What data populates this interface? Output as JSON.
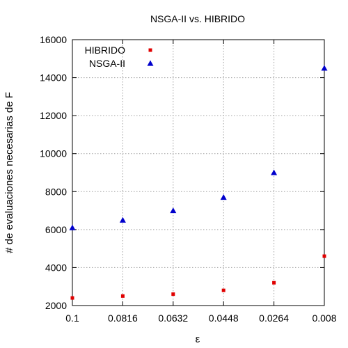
{
  "chart_data": {
    "type": "scatter",
    "title": "NSGA-II vs. HIBRIDO",
    "xlabel": "ε",
    "ylabel": "# de evaluaciones necesarias de F",
    "x_ticks": [
      "0.1",
      "0.0816",
      "0.0632",
      "0.0448",
      "0.0264",
      "0.008"
    ],
    "x": [
      0.1,
      0.0816,
      0.0632,
      0.0448,
      0.0264,
      0.008
    ],
    "xlim": [
      0.1,
      0.008
    ],
    "x_reversed": true,
    "ylim": [
      2000,
      16000
    ],
    "y_ticks": [
      2000,
      4000,
      6000,
      8000,
      10000,
      12000,
      14000,
      16000
    ],
    "grid": true,
    "legend_position": "top-left",
    "series": [
      {
        "name": "HIBRIDO",
        "marker": "square",
        "color": "#e00000",
        "values": [
          2400,
          2500,
          2600,
          2800,
          3200,
          4600
        ]
      },
      {
        "name": "NSGA-II",
        "marker": "triangle",
        "color": "#0000cc",
        "values": [
          6100,
          6500,
          7000,
          7700,
          9000,
          14500
        ]
      }
    ]
  }
}
